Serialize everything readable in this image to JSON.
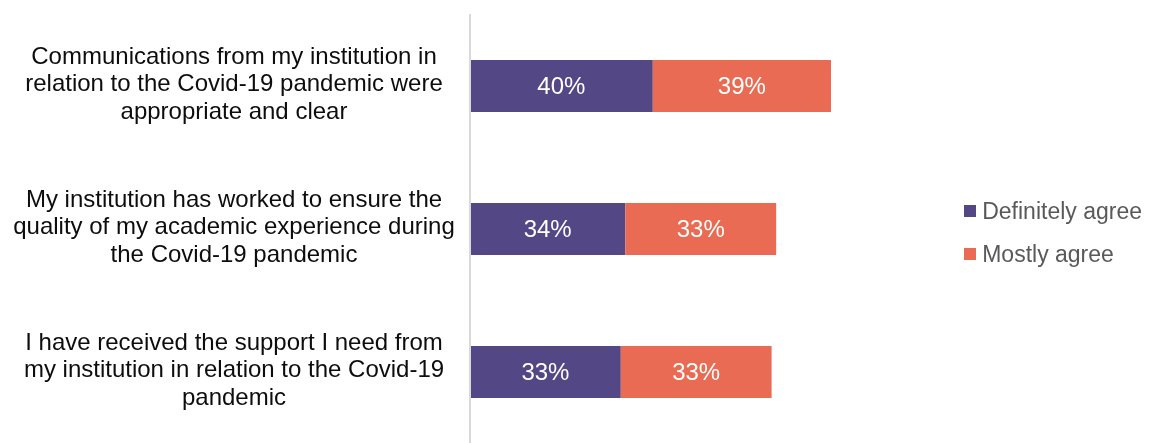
{
  "chart_data": {
    "type": "bar",
    "orientation": "horizontal",
    "stacked": true,
    "categories": [
      "Communications from my institution in relation to the Covid-19 pandemic were appropriate and clear",
      "My institution has worked to ensure the quality of my academic experience during the Covid-19 pandemic",
      "I have received the support I need from my institution in relation to the Covid-19 pandemic"
    ],
    "series": [
      {
        "name": "Definitely agree",
        "color": "#544785",
        "values": [
          40,
          34,
          33
        ],
        "value_labels": [
          "40%",
          "34%",
          "33%"
        ]
      },
      {
        "name": "Mostly agree",
        "color": "#e96b53",
        "values": [
          39,
          33,
          33
        ],
        "value_labels": [
          "39%",
          "33%",
          "33%"
        ]
      }
    ],
    "legend": "right"
  }
}
